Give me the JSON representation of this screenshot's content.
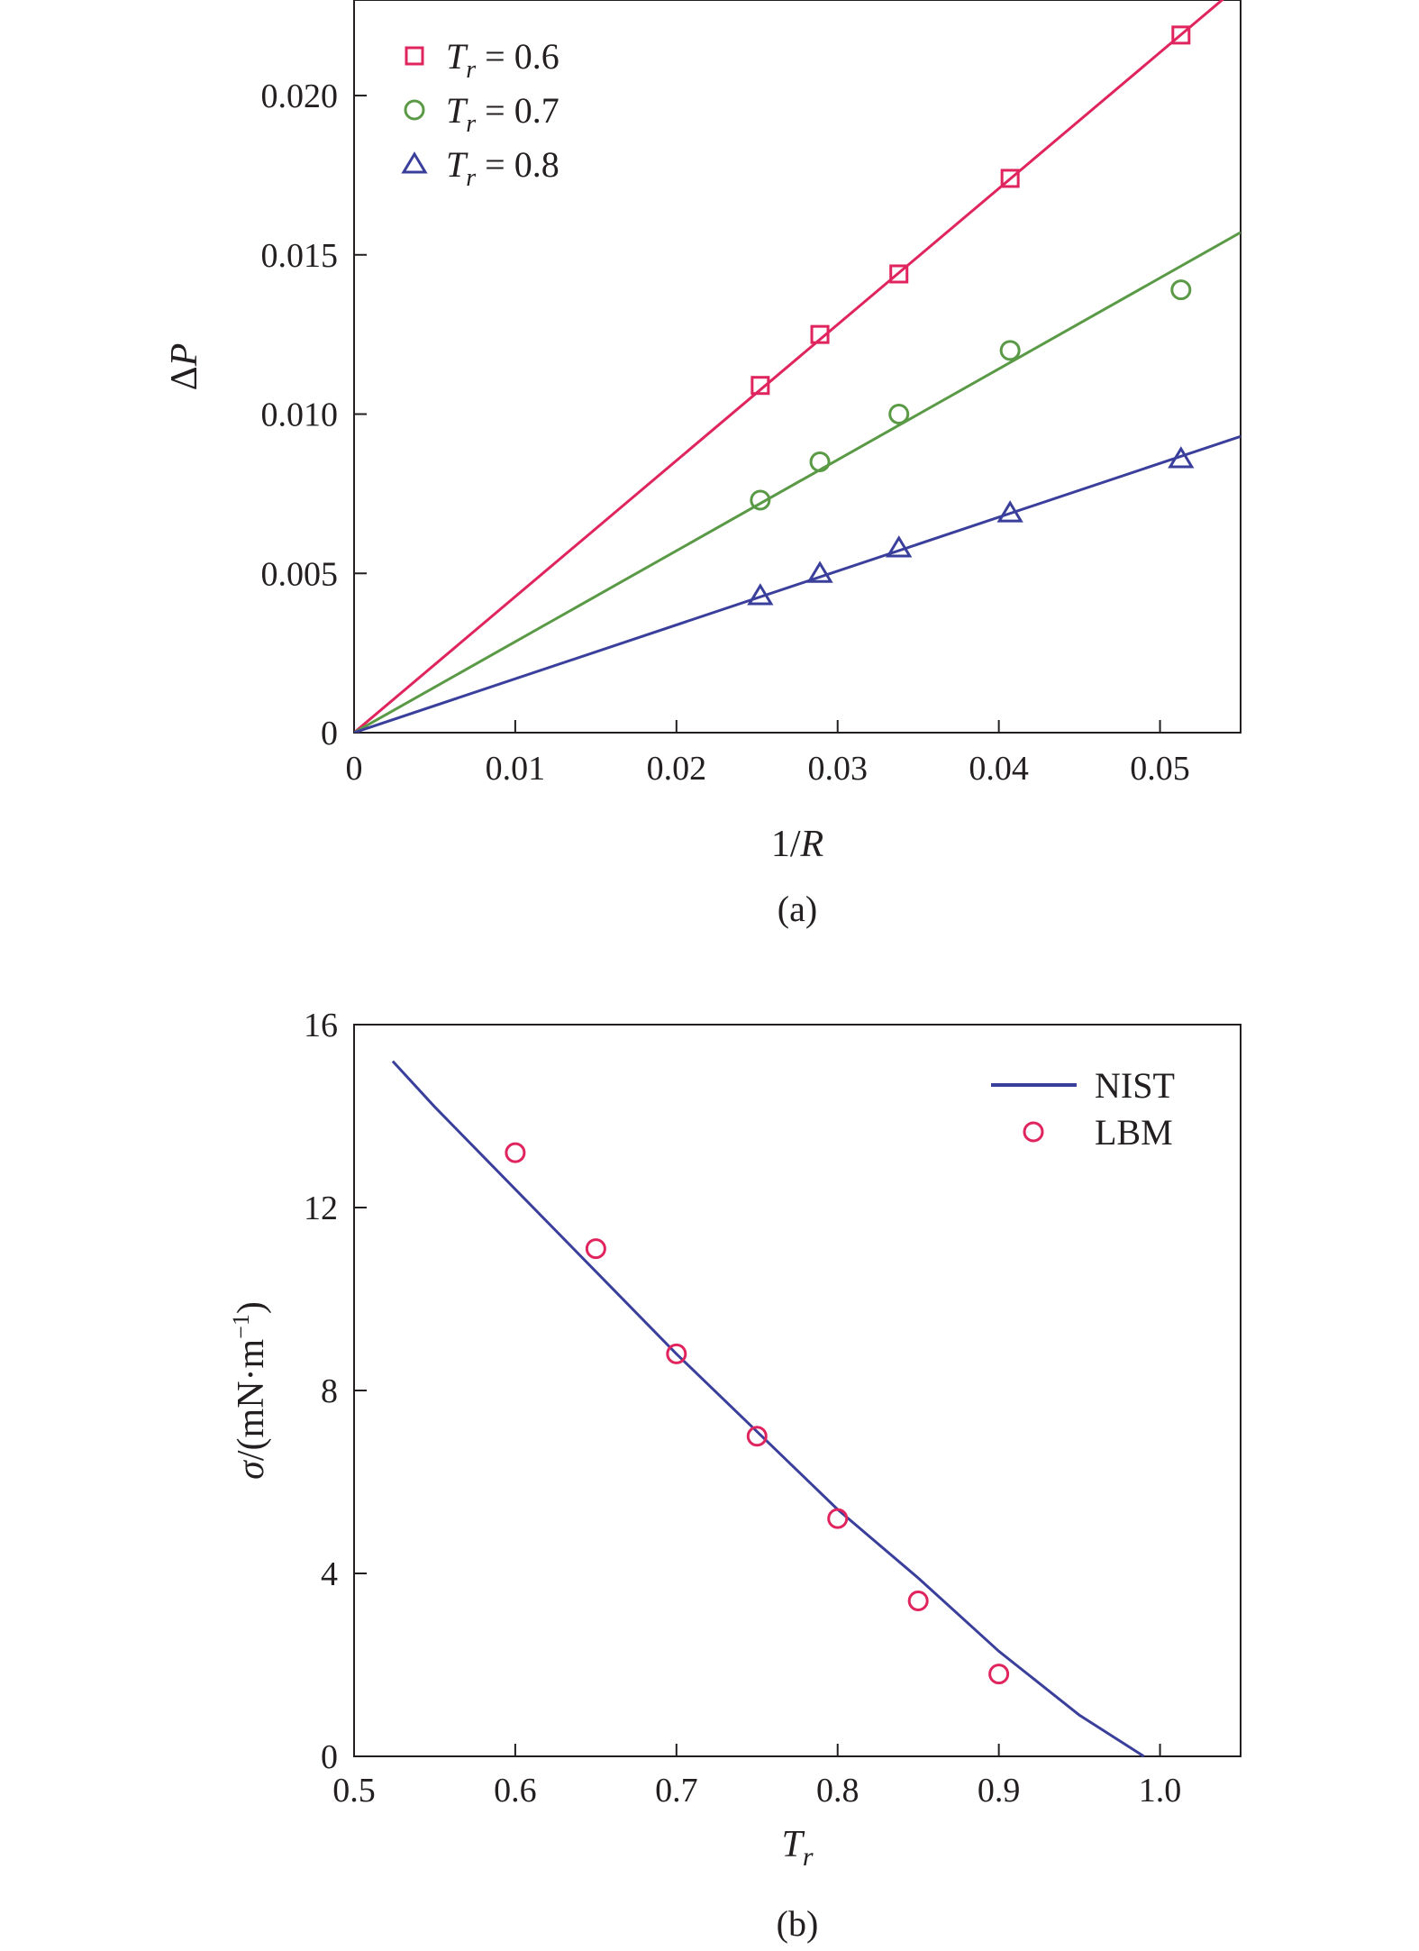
{
  "chart_data": [
    {
      "type": "scatter",
      "panel_label": "(a)",
      "xlabel": "1/R",
      "ylabel": "ΔP",
      "xlim": [
        0,
        0.055
      ],
      "ylim": [
        0,
        0.023
      ],
      "xticks": [
        0,
        0.01,
        0.02,
        0.03,
        0.04,
        0.05
      ],
      "xtick_labels": [
        "0",
        "0.01",
        "0.02",
        "0.03",
        "0.04",
        "0.05"
      ],
      "yticks": [
        0,
        0.005,
        0.01,
        0.015,
        0.02
      ],
      "ytick_labels": [
        "0",
        "0.005",
        "0.010",
        "0.015",
        "0.020"
      ],
      "legend_position": "top-left",
      "series": [
        {
          "name": "Tr = 0.6",
          "legend_prefix": "T",
          "legend_sub": "r",
          "legend_suffix": " = 0.6",
          "marker": "square",
          "color": "#e0245e",
          "x": [
            0.0252,
            0.0289,
            0.0338,
            0.0407,
            0.0513
          ],
          "y": [
            0.0109,
            0.0125,
            0.0144,
            0.0174,
            0.0219
          ],
          "fit_slope": 0.4271
        },
        {
          "name": "Tr = 0.7",
          "legend_prefix": "T",
          "legend_sub": "r",
          "legend_suffix": " = 0.7",
          "marker": "circle",
          "color": "#5a9a46",
          "x": [
            0.0252,
            0.0289,
            0.0338,
            0.0407,
            0.0513
          ],
          "y": [
            0.0073,
            0.0085,
            0.01,
            0.012,
            0.0139
          ],
          "fit_slope": 0.2855
        },
        {
          "name": "Tr = 0.8",
          "legend_prefix": "T",
          "legend_sub": "r",
          "legend_suffix": " = 0.8",
          "marker": "triangle",
          "color": "#3b3f9c",
          "x": [
            0.0252,
            0.0289,
            0.0338,
            0.0407,
            0.0513
          ],
          "y": [
            0.0043,
            0.005,
            0.0058,
            0.0069,
            0.0086
          ],
          "fit_slope": 0.1691
        }
      ]
    },
    {
      "type": "line",
      "panel_label": "(b)",
      "xlabel": "Tr",
      "xlabel_main": "T",
      "xlabel_sub": "r",
      "ylabel": "σ/(mN·m⁻¹)",
      "ylabel_parts": {
        "sym": "σ",
        "body": "/(mN·m",
        "sup": "−1",
        "close": ")"
      },
      "xlim": [
        0.5,
        1.05
      ],
      "ylim": [
        0,
        16
      ],
      "xticks": [
        0.5,
        0.6,
        0.7,
        0.8,
        0.9,
        1.0
      ],
      "xtick_labels": [
        "0.5",
        "0.6",
        "0.7",
        "0.8",
        "0.9",
        "1.0"
      ],
      "yticks": [
        0,
        4,
        8,
        12,
        16
      ],
      "ytick_labels": [
        "0",
        "4",
        "8",
        "12",
        "16"
      ],
      "legend_position": "top-right",
      "series": [
        {
          "name": "NIST",
          "style": "line",
          "color": "#3b3f9c",
          "x": [
            0.524,
            0.55,
            0.6,
            0.65,
            0.7,
            0.75,
            0.8,
            0.85,
            0.9,
            0.95,
            0.99
          ],
          "y": [
            15.2,
            14.2,
            12.4,
            10.6,
            8.8,
            7.1,
            5.4,
            3.9,
            2.3,
            0.9,
            0.0
          ]
        },
        {
          "name": "LBM",
          "style": "marker",
          "marker": "circle",
          "color": "#e0245e",
          "x": [
            0.6,
            0.65,
            0.7,
            0.75,
            0.8,
            0.85,
            0.9
          ],
          "y": [
            13.2,
            11.1,
            8.8,
            7.0,
            5.2,
            3.4,
            1.8
          ]
        }
      ]
    }
  ]
}
